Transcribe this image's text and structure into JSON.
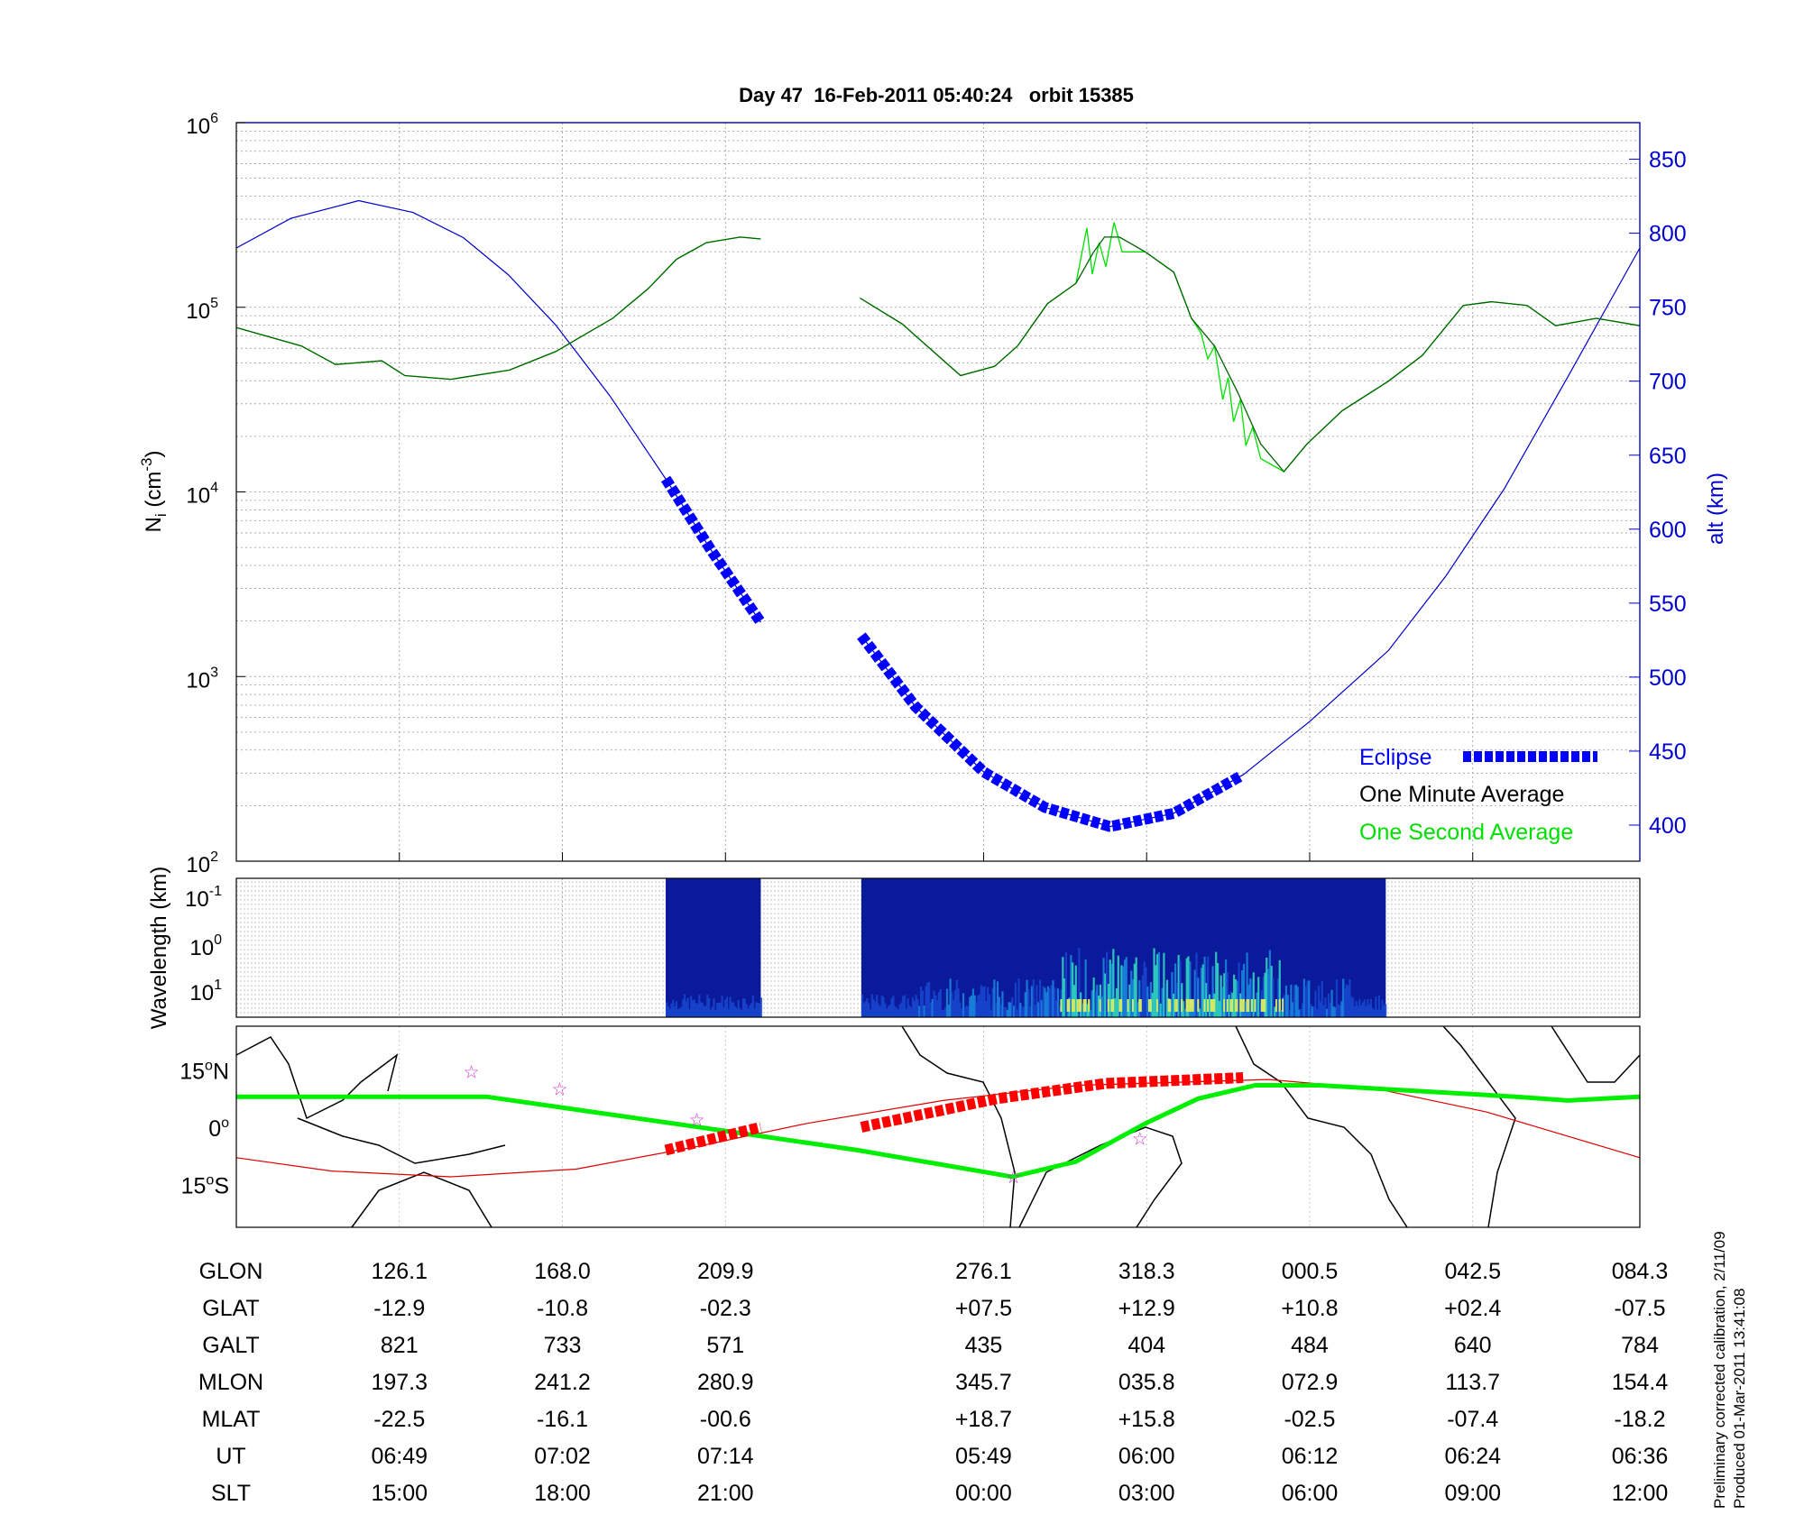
{
  "chart_data": {
    "type": "line",
    "title": "Day 47  16-Feb-2011 05:40:24   orbit 15385",
    "x_unit": "minutes from left edge (approx.)",
    "xlim": [
      0,
      103.3
    ],
    "panels": {
      "density": {
        "ylabel": "N",
        "ylabel_sub": "i",
        "ylabel_unit": " (cm",
        "ylabel_exp": "-3",
        "ylabel_close": ")",
        "ylim_log10": [
          2,
          6
        ],
        "yticks": [
          {
            "base": "10",
            "exp": "2",
            "v": 2
          },
          {
            "base": "10",
            "exp": "3",
            "v": 3
          },
          {
            "base": "10",
            "exp": "4",
            "v": 4
          },
          {
            "base": "10",
            "exp": "5",
            "v": 5
          },
          {
            "base": "10",
            "exp": "6",
            "v": 6
          }
        ],
        "y2label": "alt (km)",
        "y2lim": [
          378,
          878
        ],
        "y2ticks": [
          400,
          450,
          500,
          550,
          600,
          650,
          700,
          750,
          800,
          850
        ],
        "series": [
          {
            "name": "One Minute Average",
            "color": "#006400",
            "segments": [
              [
                [
                  0,
                  4.89
                ],
                [
                  4.8,
                  4.79
                ],
                [
                  7.3,
                  4.69
                ],
                [
                  10.7,
                  4.71
                ],
                [
                  12.4,
                  4.63
                ],
                [
                  15.8,
                  4.61
                ],
                [
                  20.1,
                  4.66
                ],
                [
                  23.5,
                  4.76
                ],
                [
                  27.7,
                  4.94
                ],
                [
                  30.3,
                  5.1
                ],
                [
                  32.4,
                  5.26
                ],
                [
                  34.6,
                  5.35
                ],
                [
                  37.1,
                  5.38
                ],
                [
                  38.6,
                  5.37
                ]
              ],
              [
                [
                  45.9,
                  5.05
                ],
                [
                  49,
                  4.91
                ],
                [
                  53.3,
                  4.63
                ],
                [
                  55.8,
                  4.68
                ],
                [
                  57.5,
                  4.79
                ],
                [
                  59.7,
                  5.02
                ],
                [
                  61.8,
                  5.13
                ],
                [
                  63.1,
                  5.3
                ],
                [
                  63.9,
                  5.38
                ],
                [
                  65,
                  5.38
                ],
                [
                  66.9,
                  5.3
                ],
                [
                  69,
                  5.19
                ],
                [
                  70.3,
                  4.94
                ],
                [
                  72,
                  4.79
                ],
                [
                  73.7,
                  4.54
                ],
                [
                  75.4,
                  4.26
                ],
                [
                  77.1,
                  4.11
                ],
                [
                  78.8,
                  4.26
                ],
                [
                  81.4,
                  4.44
                ],
                [
                  84.8,
                  4.6
                ],
                [
                  87.3,
                  4.74
                ],
                [
                  90.3,
                  5.01
                ],
                [
                  92.4,
                  5.03
                ],
                [
                  95,
                  5.01
                ],
                [
                  97.1,
                  4.9
                ],
                [
                  100.1,
                  4.94
                ],
                [
                  103.3,
                  4.9
                ]
              ]
            ]
          },
          {
            "name": "One Second Average",
            "color": "#00e000",
            "segments": [
              [
                [
                  0,
                  4.89
                ],
                [
                  4.8,
                  4.79
                ],
                [
                  7.3,
                  4.69
                ],
                [
                  10.7,
                  4.71
                ],
                [
                  12.4,
                  4.63
                ],
                [
                  15.8,
                  4.61
                ],
                [
                  20.1,
                  4.66
                ],
                [
                  23.5,
                  4.76
                ],
                [
                  27.7,
                  4.94
                ],
                [
                  30.3,
                  5.1
                ],
                [
                  32.4,
                  5.26
                ],
                [
                  34.6,
                  5.35
                ],
                [
                  37.1,
                  5.38
                ],
                [
                  38.6,
                  5.37
                ]
              ],
              [
                [
                  45.9,
                  5.05
                ],
                [
                  49,
                  4.91
                ],
                [
                  53.3,
                  4.63
                ],
                [
                  55.8,
                  4.68
                ],
                [
                  57.5,
                  4.79
                ],
                [
                  59.7,
                  5.02
                ],
                [
                  61.8,
                  5.13
                ],
                [
                  62.6,
                  5.43
                ],
                [
                  63.0,
                  5.18
                ],
                [
                  63.5,
                  5.35
                ],
                [
                  64,
                  5.22
                ],
                [
                  64.6,
                  5.46
                ],
                [
                  65.2,
                  5.3
                ],
                [
                  66.9,
                  5.3
                ],
                [
                  69,
                  5.19
                ],
                [
                  70.3,
                  4.94
                ],
                [
                  71,
                  4.86
                ],
                [
                  71.5,
                  4.72
                ],
                [
                  72,
                  4.79
                ],
                [
                  72.6,
                  4.5
                ],
                [
                  73,
                  4.62
                ],
                [
                  73.4,
                  4.38
                ],
                [
                  73.9,
                  4.5
                ],
                [
                  74.3,
                  4.25
                ],
                [
                  74.8,
                  4.35
                ],
                [
                  75.4,
                  4.18
                ],
                [
                  77.1,
                  4.11
                ],
                [
                  78.8,
                  4.26
                ],
                [
                  81.4,
                  4.44
                ],
                [
                  84.8,
                  4.6
                ],
                [
                  87.3,
                  4.74
                ],
                [
                  90.3,
                  5.01
                ],
                [
                  92.4,
                  5.03
                ],
                [
                  95,
                  5.01
                ],
                [
                  97.1,
                  4.9
                ],
                [
                  100.1,
                  4.94
                ],
                [
                  103.3,
                  4.9
                ]
              ]
            ]
          },
          {
            "name": "Altitude",
            "color": "#0000cc",
            "axis": "right",
            "segments": [
              [
                [
                  0,
                  790
                ],
                [
                  4,
                  810
                ],
                [
                  9,
                  822
                ],
                [
                  13,
                  814
                ],
                [
                  16.7,
                  797
                ],
                [
                  20,
                  772
                ],
                [
                  23.5,
                  738
                ],
                [
                  27.5,
                  690
                ],
                [
                  31.6,
                  634
                ],
                [
                  35,
                  585
                ],
                [
                  38.6,
                  537
                ]
              ],
              [
                [
                  46,
                  528
                ],
                [
                  50,
                  480
                ],
                [
                  55,
                  436
                ],
                [
                  59.5,
                  412
                ],
                [
                  64.3,
                  399
                ],
                [
                  69,
                  408
                ],
                [
                  74.1,
                  434
                ],
                [
                  79,
                  470
                ],
                [
                  84.8,
                  518
                ],
                [
                  89,
                  568
                ],
                [
                  93.3,
                  627
                ],
                [
                  98,
                  703
                ],
                [
                  103.3,
                  790
                ]
              ]
            ]
          }
        ],
        "eclipse_ranges": [
          [
            31.6,
            38.6
          ],
          [
            46,
            74.1
          ]
        ],
        "legend": {
          "position": "bottom-right",
          "eclipse": "Eclipse",
          "minute": "One Minute Average",
          "second": "One Second Average"
        }
      },
      "spectrogram": {
        "ylabel": "Wavelength (km)",
        "yticks": [
          {
            "base": "10",
            "exp": "-1"
          },
          {
            "base": "10",
            "exp": "0"
          },
          {
            "base": "10",
            "exp": "1"
          }
        ],
        "data_ranges": [
          [
            31.6,
            38.6
          ],
          [
            46,
            84.6
          ]
        ]
      },
      "map": {
        "yticks": [
          {
            "deg": "15",
            "sfx": "N",
            "v": 15
          },
          {
            "deg": "0",
            "sfx": "",
            "v": 0
          },
          {
            "deg": "15",
            "sfx": "S",
            "v": -15
          }
        ],
        "green_track": [
          [
            0,
            8
          ],
          [
            18.4,
            8
          ],
          [
            38,
            -2
          ],
          [
            45.7,
            -6
          ],
          [
            57.1,
            -13
          ],
          [
            61.8,
            -9
          ],
          [
            66.9,
            1
          ],
          [
            70.8,
            7.5
          ],
          [
            75,
            11
          ],
          [
            79.7,
            11
          ],
          [
            94.2,
            8
          ],
          [
            98,
            7
          ],
          [
            103.3,
            8
          ]
        ],
        "red_track": [
          [
            0,
            -8
          ],
          [
            7,
            -11.5
          ],
          [
            15.8,
            -13
          ],
          [
            25,
            -11
          ],
          [
            34,
            -5
          ],
          [
            42,
            1
          ],
          [
            52,
            7
          ],
          [
            62,
            11
          ],
          [
            76,
            12.5
          ],
          [
            84,
            10
          ],
          [
            92,
            4
          ],
          [
            103.3,
            -8
          ]
        ],
        "red_eclipse": [
          [
            [
              31.6,
              -6
            ],
            [
              38.6,
              0
            ]
          ],
          [
            [
              46,
              0
            ],
            [
              56,
              7.5
            ],
            [
              64,
              11.5
            ],
            [
              74.1,
              13
            ]
          ]
        ],
        "stars": [
          [
            17.3,
            14.5
          ],
          [
            23.8,
            10
          ],
          [
            33.9,
            2
          ],
          [
            57.2,
            -13
          ],
          [
            66.5,
            -3
          ]
        ]
      }
    },
    "table": {
      "row_labels": [
        "GLON",
        "GLAT",
        "GALT",
        "MLON",
        "MLAT",
        "UT",
        "SLT"
      ],
      "tick_minutes": [
        12,
        24,
        36,
        55,
        67,
        79,
        91,
        103.3
      ],
      "columns": [
        [
          "126.1",
          "-12.9",
          "821",
          "197.3",
          "-22.5",
          "06:49",
          "15:00"
        ],
        [
          "168.0",
          "-10.8",
          "733",
          "241.2",
          "-16.1",
          "07:02",
          "18:00"
        ],
        [
          "209.9",
          "-02.3",
          "571",
          "280.9",
          "-00.6",
          "07:14",
          "21:00"
        ],
        [
          "276.1",
          "+07.5",
          "435",
          "345.7",
          "+18.7",
          "05:49",
          "00:00"
        ],
        [
          "318.3",
          "+12.9",
          "404",
          "035.8",
          "+15.8",
          "06:00",
          "03:00"
        ],
        [
          "000.5",
          "+10.8",
          "484",
          "072.9",
          "-02.5",
          "06:12",
          "06:00"
        ],
        [
          "042.5",
          "+02.4",
          "640",
          "113.7",
          "-07.4",
          "06:24",
          "09:00"
        ],
        [
          "084.3",
          "-07.5",
          "784",
          "154.4",
          "-18.2",
          "06:36",
          "12:00"
        ]
      ]
    },
    "footnote": [
      "Preliminary corrected calibration, 2/11/09",
      "Produced 01-Mar-2011 13:41:08"
    ],
    "colors": {
      "eclipse": "#0000ff",
      "minute": "#000000",
      "second": "#00e000",
      "alt": "#0000cc",
      "map_red": "#ff0000",
      "map_green": "#00ee00",
      "star": "#cc33cc"
    }
  }
}
